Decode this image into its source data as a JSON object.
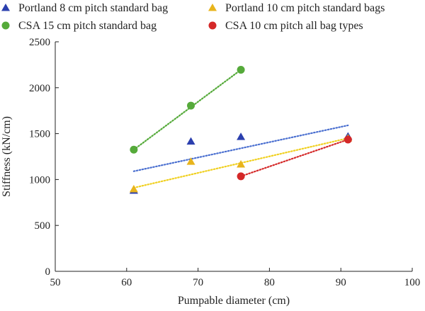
{
  "chart_data": {
    "type": "scatter",
    "title": "",
    "xlabel": "Pumpable diameter (cm)",
    "ylabel": "Stiffness (kN/cm)",
    "xlim": [
      50,
      100
    ],
    "ylim": [
      0,
      2500
    ],
    "xticks": [
      50,
      60,
      70,
      80,
      90,
      100
    ],
    "yticks": [
      0,
      500,
      1000,
      1500,
      2000,
      2500
    ],
    "grid": false,
    "legend_position": "top",
    "series": [
      {
        "name": "Portland 8 cm pitch standard bag",
        "marker": "triangle",
        "color": "#2b3fae",
        "points": [
          [
            61,
            880
          ],
          [
            69,
            1415
          ],
          [
            76,
            1465
          ],
          [
            91,
            1470
          ]
        ],
        "trendline": {
          "color": "#4a6fd0",
          "x": [
            61,
            91
          ],
          "y": [
            1090,
            1590
          ]
        }
      },
      {
        "name": "Portland 10 cm pitch standard bags",
        "marker": "triangle",
        "color": "#e8b41c",
        "points": [
          [
            61,
            895
          ],
          [
            69,
            1195
          ],
          [
            76,
            1165
          ],
          [
            91,
            1450
          ]
        ],
        "trendline": {
          "color": "#f0d020",
          "x": [
            61,
            91
          ],
          "y": [
            910,
            1450
          ]
        }
      },
      {
        "name": "CSA 15 cm pitch standard bag",
        "marker": "circle",
        "color": "#55aa3a",
        "points": [
          [
            61,
            1325
          ],
          [
            69,
            1805
          ],
          [
            76,
            2195
          ]
        ],
        "trendline": {
          "color": "#55aa3a",
          "x": [
            61,
            76
          ],
          "y": [
            1325,
            2195
          ]
        }
      },
      {
        "name": "CSA 10 cm pitch all bag types",
        "marker": "circle",
        "color": "#d42828",
        "points": [
          [
            76,
            1035
          ],
          [
            91,
            1435
          ]
        ],
        "trendline": {
          "color": "#d42828",
          "x": [
            76,
            91
          ],
          "y": [
            1035,
            1435
          ]
        }
      }
    ]
  }
}
